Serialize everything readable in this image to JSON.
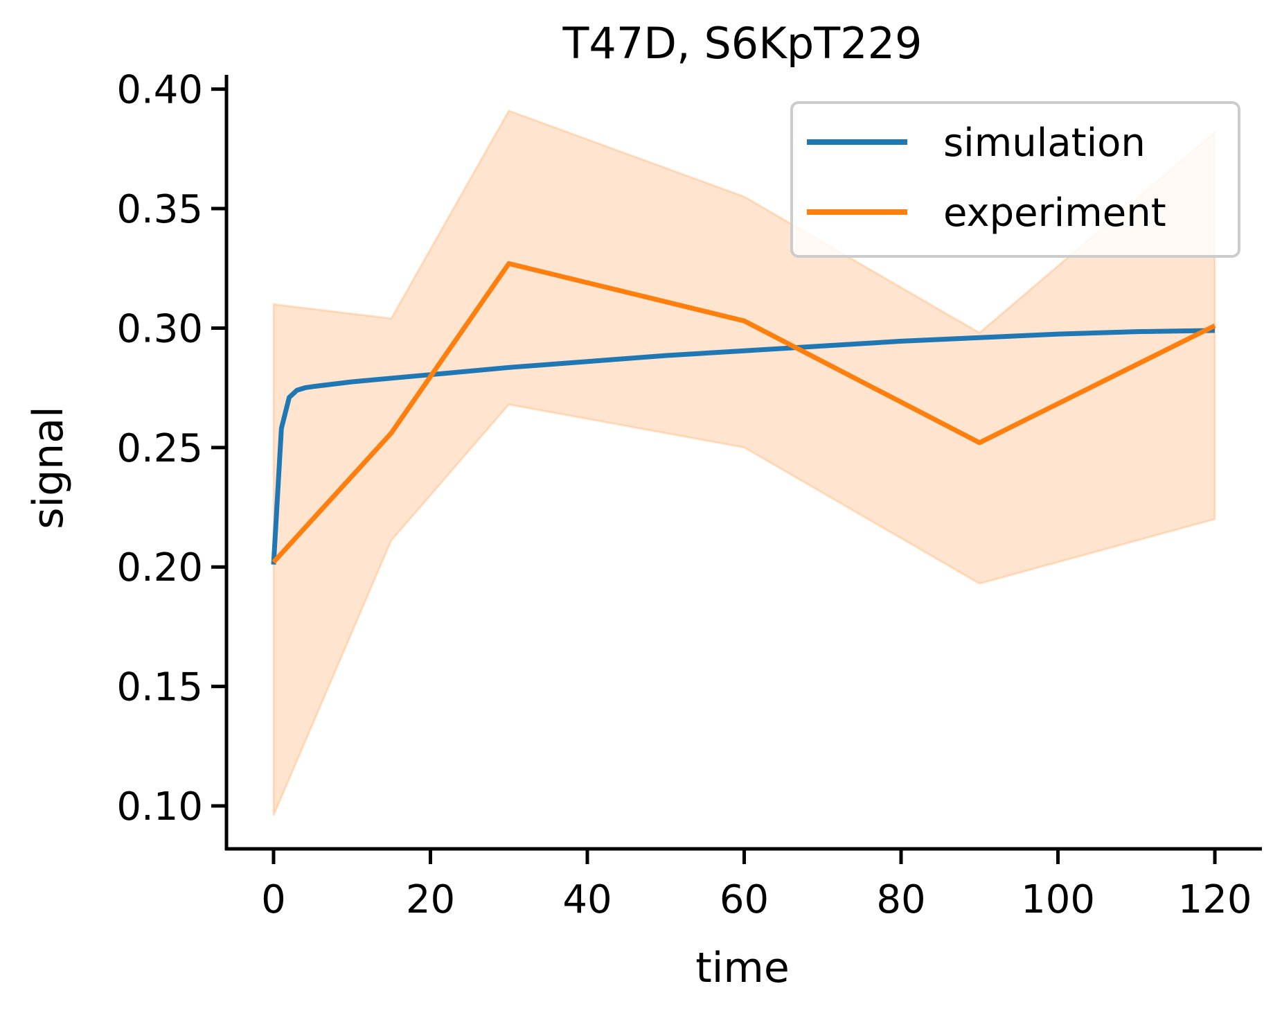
{
  "chart_data": {
    "type": "line",
    "title": "T47D, S6KpT229",
    "xlabel": "time",
    "ylabel": "signal",
    "xlim": [
      -6,
      126
    ],
    "ylim": [
      0.082,
      0.406
    ],
    "xticks": [
      0,
      20,
      40,
      60,
      80,
      100,
      120
    ],
    "yticks": [
      0.1,
      0.15,
      0.2,
      0.25,
      0.3,
      0.35,
      0.4
    ],
    "grid": false,
    "legend_position": "top-right",
    "series": [
      {
        "name": "simulation",
        "color": "#1f77b4",
        "x": [
          0,
          1,
          2,
          3,
          4,
          5,
          10,
          15,
          20,
          30,
          40,
          50,
          60,
          70,
          80,
          90,
          100,
          110,
          120
        ],
        "y": [
          0.201,
          0.258,
          0.271,
          0.274,
          0.275,
          0.2755,
          0.2775,
          0.279,
          0.2805,
          0.2835,
          0.286,
          0.2885,
          0.2905,
          0.2925,
          0.2945,
          0.296,
          0.2975,
          0.2985,
          0.299
        ]
      },
      {
        "name": "experiment",
        "color": "#ff7f0e",
        "x": [
          0,
          15,
          30,
          60,
          90,
          120
        ],
        "y": [
          0.202,
          0.256,
          0.327,
          0.303,
          0.252,
          0.301
        ],
        "band_lower": [
          0.096,
          0.211,
          0.268,
          0.25,
          0.193,
          0.22
        ],
        "band_upper": [
          0.31,
          0.304,
          0.391,
          0.355,
          0.298,
          0.382
        ],
        "band_color": "#ff7f0e"
      }
    ]
  }
}
